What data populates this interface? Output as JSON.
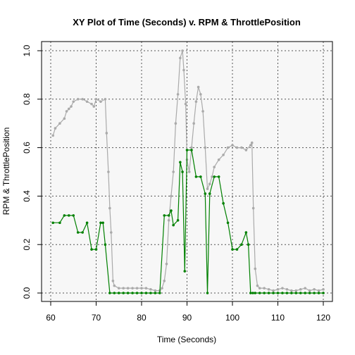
{
  "chart_data": {
    "type": "line",
    "title": "XY Plot of Time (Seconds) v. RPM & ThrottlePosition",
    "xlabel": "Time (Seconds)",
    "ylabel": "RPM & ThrottlePosition",
    "xlim": [
      60,
      120
    ],
    "ylim": [
      0.0,
      1.0
    ],
    "xticks": [
      "60",
      "70",
      "80",
      "90",
      "100",
      "110",
      "120"
    ],
    "yticks": [
      "0.0",
      "0.2",
      "0.4",
      "0.6",
      "0.8",
      "1.0"
    ],
    "grid": true,
    "background_color": "#f7f7f7",
    "series": [
      {
        "color": "#aaaaaa",
        "x": [
          60.5,
          61,
          62,
          63,
          63.5,
          64,
          64.5,
          65,
          66,
          67,
          68,
          69,
          69.5,
          70,
          71,
          72,
          72.3,
          72.7,
          73,
          73.3,
          73.7,
          74,
          75,
          76,
          77,
          78,
          79,
          80,
          81,
          82,
          83,
          84,
          84.5,
          85,
          85.5,
          86,
          86.5,
          87,
          87.5,
          88,
          88.5,
          89,
          89.3,
          89.7,
          90,
          90.5,
          91,
          91.5,
          92,
          92.5,
          93,
          93.5,
          94,
          94.5,
          95,
          95.5,
          96,
          97,
          98,
          99,
          100,
          101,
          102,
          103,
          104,
          104.3,
          104.6,
          105,
          105.5,
          106,
          107,
          108,
          109,
          110,
          111,
          112,
          113,
          114,
          115,
          116,
          117,
          118,
          119,
          120
        ],
        "y": [
          0.65,
          0.68,
          0.7,
          0.72,
          0.75,
          0.76,
          0.77,
          0.79,
          0.8,
          0.8,
          0.79,
          0.78,
          0.77,
          0.8,
          0.79,
          0.8,
          0.66,
          0.5,
          0.35,
          0.25,
          0.05,
          0.03,
          0.02,
          0.02,
          0.02,
          0.02,
          0.02,
          0.02,
          0.02,
          0.015,
          0.01,
          0.01,
          0.02,
          0.05,
          0.12,
          0.3,
          0.4,
          0.5,
          0.7,
          0.82,
          0.97,
          1.0,
          0.92,
          0.78,
          0.55,
          0.5,
          0.6,
          0.7,
          0.79,
          0.85,
          0.82,
          0.75,
          0.6,
          0.43,
          0.45,
          0.48,
          0.52,
          0.55,
          0.57,
          0.6,
          0.61,
          0.6,
          0.6,
          0.59,
          0.61,
          0.62,
          0.35,
          0.1,
          0.03,
          0.02,
          0.02,
          0.015,
          0.01,
          0.015,
          0.02,
          0.015,
          0.01,
          0.01,
          0.015,
          0.02,
          0.01,
          0.015,
          0.01,
          0.015
        ]
      },
      {
        "color": "#008000",
        "x": [
          60.5,
          62,
          63,
          64,
          65,
          66,
          67,
          68,
          69,
          70,
          71,
          71.5,
          72,
          73,
          74,
          75,
          76,
          77,
          78,
          79,
          80,
          81,
          82,
          83,
          84,
          85,
          86,
          86.5,
          87,
          88,
          88.5,
          89,
          89.5,
          90,
          91,
          92,
          93,
          94,
          94.5,
          95,
          96,
          97,
          98,
          99,
          100,
          101,
          102,
          103,
          103.5,
          104,
          104.5,
          105,
          106,
          107,
          108,
          109,
          110,
          111,
          112,
          113,
          114,
          115,
          116,
          117,
          118,
          119,
          120
        ],
        "y": [
          0.29,
          0.29,
          0.32,
          0.32,
          0.32,
          0.25,
          0.25,
          0.29,
          0.18,
          0.18,
          0.29,
          0.29,
          0.2,
          0.0,
          0.0,
          0.0,
          0.0,
          0.0,
          0.0,
          0.0,
          0.0,
          0.0,
          0.0,
          0.0,
          0.0,
          0.32,
          0.32,
          0.34,
          0.28,
          0.3,
          0.54,
          0.5,
          0.09,
          0.59,
          0.59,
          0.48,
          0.48,
          0.41,
          0.0,
          0.41,
          0.48,
          0.48,
          0.37,
          0.29,
          0.18,
          0.18,
          0.2,
          0.25,
          0.2,
          0.0,
          0.0,
          0.0,
          0.0,
          0.0,
          0.0,
          0.0,
          0.0,
          0.0,
          0.0,
          0.0,
          0.0,
          0.0,
          0.0,
          0.0,
          0.0,
          0.0,
          0.0
        ]
      }
    ]
  }
}
